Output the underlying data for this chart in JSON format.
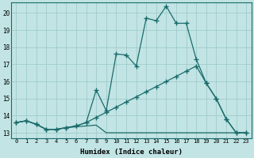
{
  "xlabel": "Humidex (Indice chaleur)",
  "bg_color": "#c2e4e4",
  "grid_color": "#a0cccc",
  "line_color": "#1a6b6b",
  "xlim": [
    -0.5,
    23.5
  ],
  "ylim": [
    12.7,
    20.6
  ],
  "yticks": [
    13,
    14,
    15,
    16,
    17,
    18,
    19,
    20
  ],
  "xticks": [
    0,
    1,
    2,
    3,
    4,
    5,
    6,
    7,
    8,
    9,
    10,
    11,
    12,
    13,
    14,
    15,
    16,
    17,
    18,
    19,
    20,
    21,
    22,
    23
  ],
  "xtick_labels": [
    "0",
    "1",
    "2",
    "3",
    "4",
    "5",
    "6",
    "7",
    "8",
    "9",
    "10",
    "11",
    "12",
    "13",
    "14",
    "15",
    "16",
    "17",
    "18",
    "19",
    "20",
    "21",
    "22",
    "23"
  ],
  "line1_x": [
    0,
    1,
    2,
    3,
    4,
    5,
    6,
    7,
    8,
    9,
    10,
    11,
    12,
    13,
    14,
    15,
    16,
    17,
    18,
    19,
    20,
    21,
    22,
    23
  ],
  "line1_y": [
    13.6,
    13.7,
    13.5,
    13.2,
    13.2,
    13.3,
    13.4,
    13.6,
    15.5,
    14.3,
    17.6,
    17.55,
    16.9,
    19.7,
    19.55,
    20.4,
    19.4,
    19.4,
    17.3,
    15.9,
    15.0,
    13.8,
    13.0,
    13.0
  ],
  "line2_x": [
    0,
    1,
    2,
    3,
    4,
    5,
    6,
    7,
    8,
    9,
    10,
    11,
    12,
    13,
    14,
    15,
    16,
    17,
    18,
    19,
    20,
    21,
    22,
    23
  ],
  "line2_y": [
    13.6,
    13.7,
    13.5,
    13.2,
    13.2,
    13.3,
    13.4,
    13.6,
    13.9,
    14.2,
    14.5,
    14.8,
    15.1,
    15.4,
    15.7,
    16.0,
    16.3,
    16.6,
    16.9,
    15.9,
    15.0,
    13.8,
    13.0,
    13.0
  ],
  "line3_x": [
    0,
    1,
    2,
    3,
    4,
    5,
    6,
    7,
    8,
    9,
    10,
    11,
    12,
    13,
    14,
    15,
    16,
    17,
    18,
    19,
    20,
    21,
    22,
    23
  ],
  "line3_y": [
    13.6,
    13.7,
    13.5,
    13.2,
    13.2,
    13.3,
    13.35,
    13.4,
    13.45,
    13.0,
    13.0,
    13.0,
    13.0,
    13.0,
    13.0,
    13.0,
    13.0,
    13.0,
    13.0,
    13.0,
    13.0,
    13.0,
    13.0,
    13.0
  ]
}
